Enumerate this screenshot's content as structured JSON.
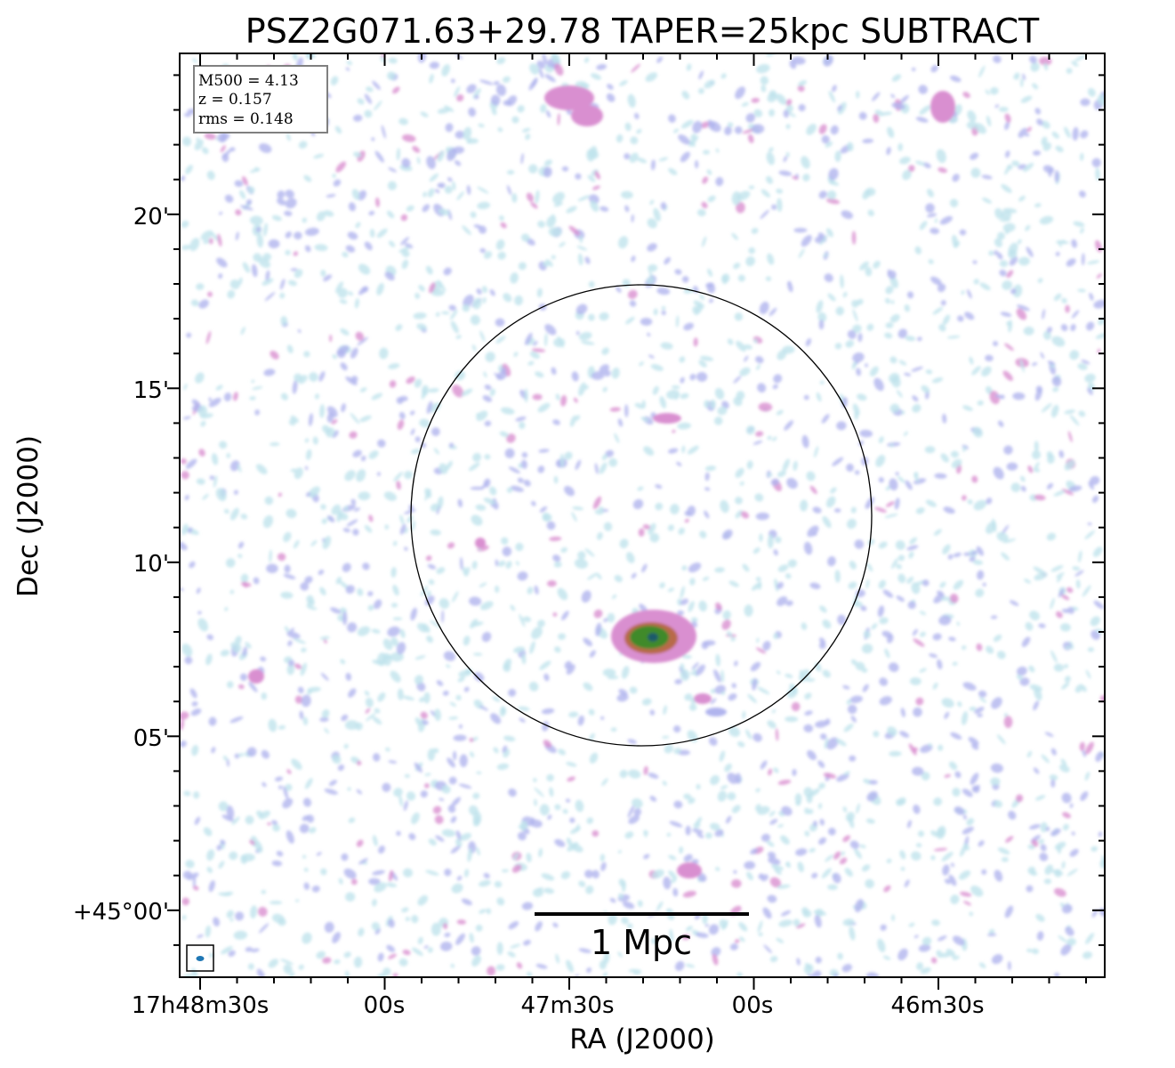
{
  "chart_data": {
    "type": "heatmap",
    "title": "PSZ2G071.63+29.78 TAPER=25kpc SUBTRACT",
    "xlabel": "RA (J2000)",
    "ylabel": "Dec (J2000)",
    "xticks": [
      "17h48m30s",
      "00s",
      "47m30s",
      "00s",
      "46m30s"
    ],
    "yticks": [
      "20'",
      "15'",
      "10'",
      "05'",
      "+45°00'"
    ],
    "annotation": [
      "M500 = 4.13",
      "z = 0.157",
      "rms = 0.148"
    ],
    "scalebar_label": "1 Mpc",
    "colors": {
      "low": "#bfe4ec",
      "mid": "#b0b4ee",
      "high": "#d98fd0",
      "peak": "#3f8a2a",
      "core": "#1a5a6a",
      "beam": "#1f77b4"
    }
  }
}
